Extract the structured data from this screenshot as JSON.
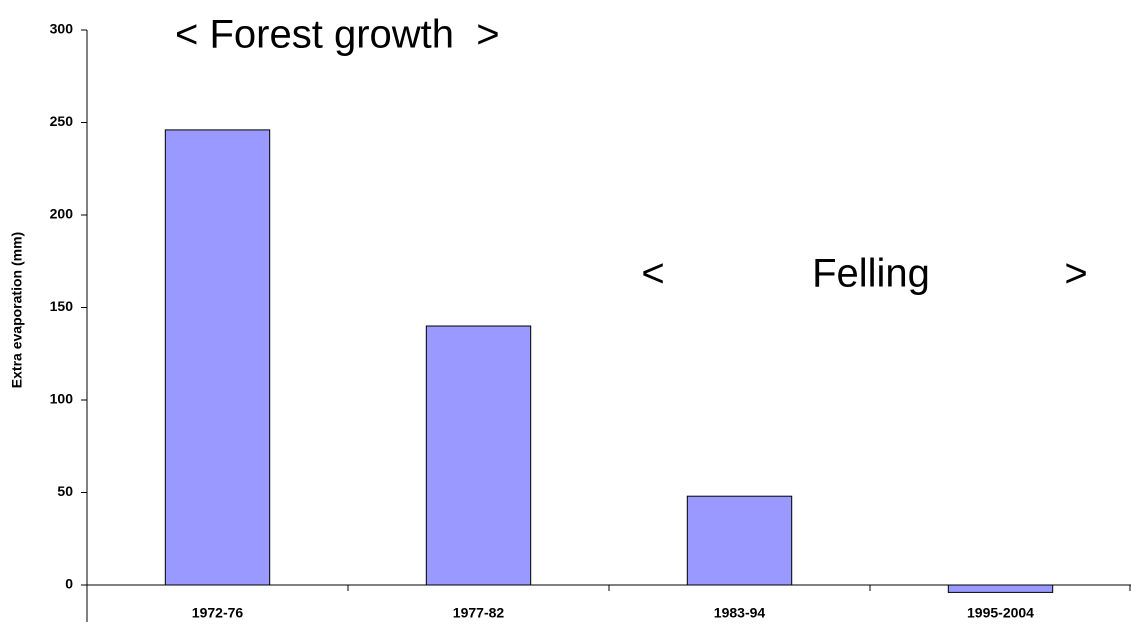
{
  "chart_data": {
    "type": "bar",
    "y_label": "Extra evaporation (mm)",
    "categories": [
      "1972-76",
      "1977-82",
      "1983-94",
      "1995-2004"
    ],
    "values": [
      246,
      140,
      48,
      -4
    ],
    "color": "#9999ff",
    "ylim": [
      -20,
      300
    ],
    "yticks": [
      0,
      50,
      100,
      150,
      200,
      250,
      300
    ],
    "annotations": [
      "< Forest growth  >",
      "<",
      "Felling",
      ">"
    ]
  }
}
